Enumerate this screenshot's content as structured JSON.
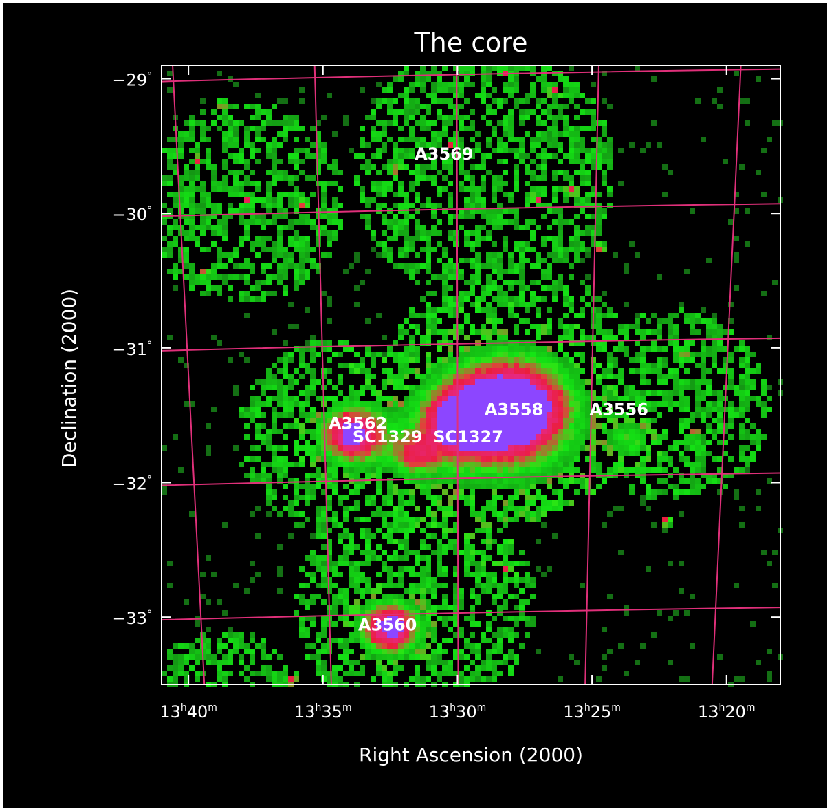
{
  "chart_data": {
    "type": "heatmap",
    "title": "The core",
    "xlabel": "Right Ascension (2000)",
    "ylabel": "Declination (2000)",
    "x_ticks": [
      "13h40m",
      "13h35m",
      "13h30m",
      "13h25m",
      "13h20m"
    ],
    "y_ticks": [
      "-29°",
      "-30°",
      "-31°",
      "-32°",
      "-33°"
    ],
    "x_tick_labels": [
      {
        "h": "13",
        "m": "40"
      },
      {
        "h": "13",
        "m": "35"
      },
      {
        "h": "13",
        "m": "30"
      },
      {
        "h": "13",
        "m": "25"
      },
      {
        "h": "13",
        "m": "20"
      }
    ],
    "y_tick_labels": [
      {
        "deg": "-29"
      },
      {
        "deg": "-30"
      },
      {
        "deg": "-31"
      },
      {
        "deg": "-32"
      },
      {
        "deg": "-33"
      }
    ],
    "xlim_ra_minutes": [
      41.0,
      18.0
    ],
    "ylim_dec_deg": [
      -33.5,
      -28.9
    ],
    "grid": true,
    "colors": {
      "background": "#000000",
      "frame": "#ffffff",
      "grid": "#e0307a",
      "low": "#22cc22",
      "mid": "#ee2244",
      "peak": "#8844ff"
    },
    "sources": [
      {
        "label": "A3569",
        "ra_min": 30.5,
        "dec": -29.6
      },
      {
        "label": "A3558",
        "ra_min": 27.9,
        "dec": -31.5
      },
      {
        "label": "A3562",
        "ra_min": 33.7,
        "dec": -31.6
      },
      {
        "label": "A3556",
        "ra_min": 24.0,
        "dec": -31.5
      },
      {
        "label": "SC1327",
        "ra_min": 29.6,
        "dec": -31.7
      },
      {
        "label": "SC1329",
        "ra_min": 32.6,
        "dec": -31.7
      },
      {
        "label": "A3560",
        "ra_min": 32.6,
        "dec": -33.1
      }
    ]
  }
}
